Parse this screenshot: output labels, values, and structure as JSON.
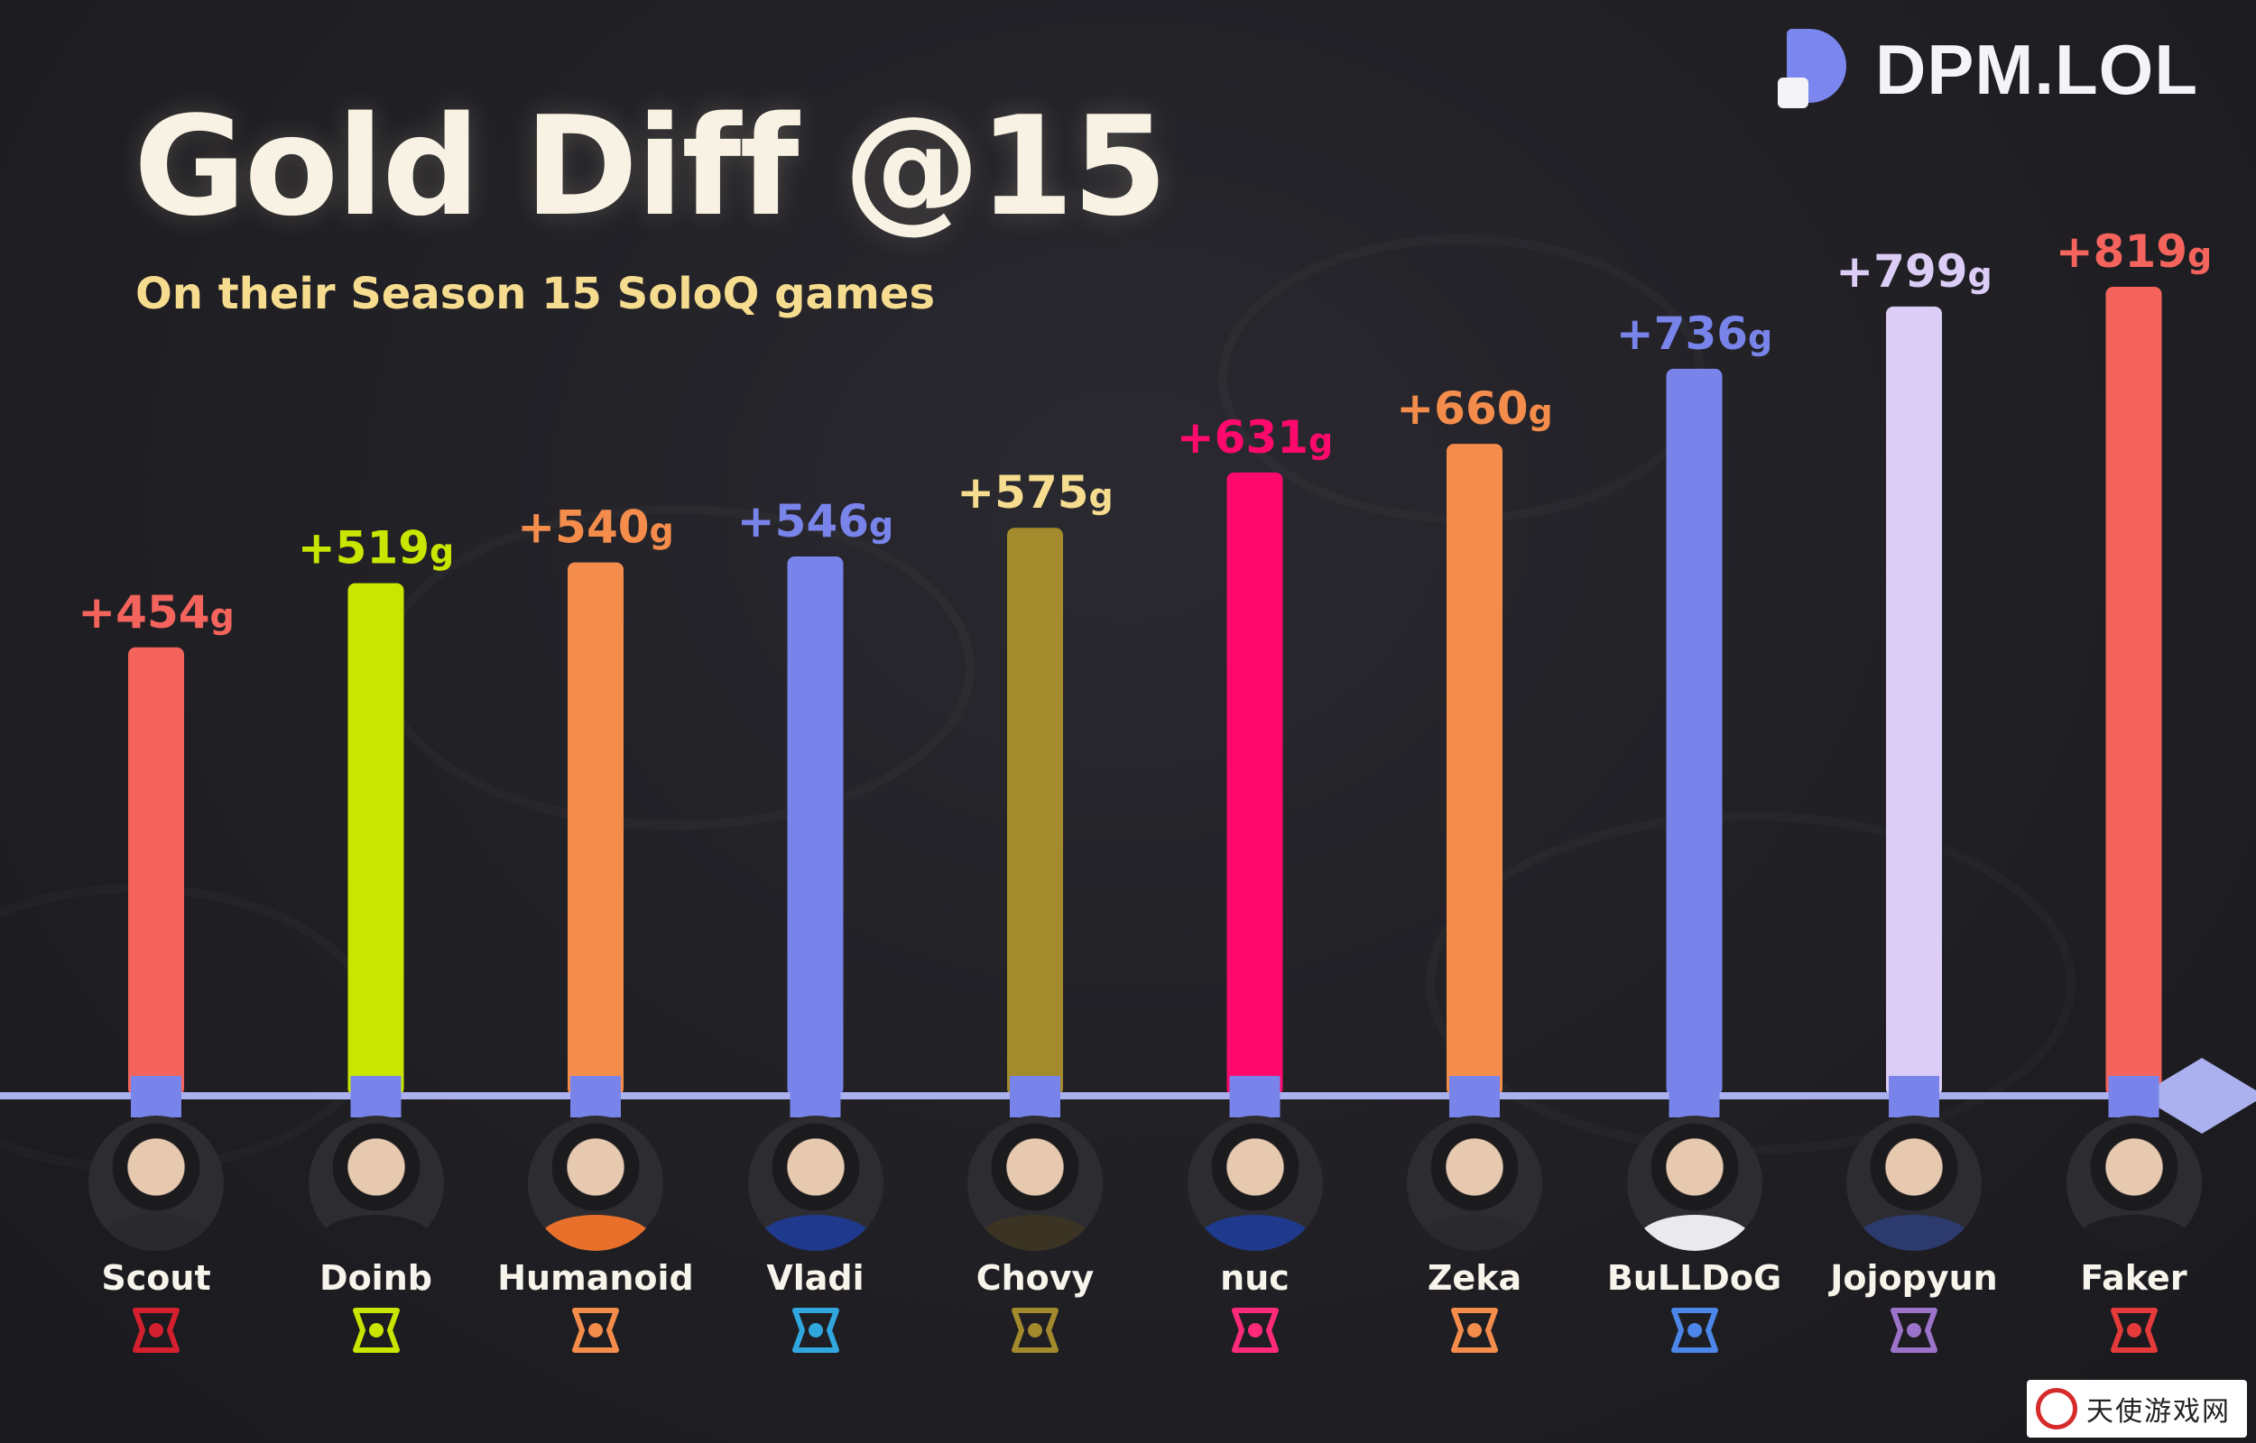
{
  "brand": {
    "name": "DPM.LOL"
  },
  "header": {
    "title": "Gold Diff @15",
    "subtitle": "On their Season 15 SoloQ games"
  },
  "chart_data": {
    "type": "bar",
    "title": "Gold Diff @15",
    "subtitle": "On their Season 15 SoloQ games",
    "xlabel": "",
    "ylabel": "",
    "unit": "g",
    "ylim": [
      0,
      819
    ],
    "grid": false,
    "categories": [
      "Scout",
      "Doinb",
      "Humanoid",
      "Vladi",
      "Chovy",
      "nuc",
      "Zeka",
      "BuLLDoG",
      "Jojopyun",
      "Faker"
    ],
    "values": [
      454,
      519,
      540,
      546,
      575,
      631,
      660,
      736,
      799,
      819
    ],
    "value_labels": [
      "+454",
      "+519",
      "+540",
      "+546",
      "+575",
      "+631",
      "+660",
      "+736",
      "+799",
      "+819"
    ],
    "unit_suffix": "g",
    "colors": [
      "#f4645d",
      "#c8e600",
      "#f48c4b",
      "#7884ea",
      "#a38a2c",
      "#ff0a6c",
      "#f48c4b",
      "#7884ea",
      "#dbcdf5",
      "#f4645d"
    ],
    "jersey_colors": [
      "#2a2a2e",
      "#1e1e22",
      "#e8702a",
      "#1f3a8c",
      "#3b3424",
      "#1f3a8c",
      "#2a2a2e",
      "#e9e9ee",
      "#2c3a6e",
      "#1e1e22"
    ],
    "team_icons": [
      "jdg-logo-icon",
      "ninjas-in-pyjamas-logo-icon",
      "fnatic-logo-icon",
      "koi-logo-icon",
      "gen-g-logo-icon",
      "team-heretics-logo-icon",
      "hanwha-life-logo-icon",
      "shopify-rebellion-logo-icon",
      "movistar-koi-logo-icon",
      "t1-logo-icon"
    ],
    "team_colors": [
      "#d4202e",
      "#c8e600",
      "#f48c4b",
      "#31a7e0",
      "#a38a2c",
      "#ff2a7a",
      "#f48c4b",
      "#4b86e8",
      "#9b74c9",
      "#e43a3a"
    ]
  },
  "watermark": {
    "text": "天使游戏网"
  }
}
